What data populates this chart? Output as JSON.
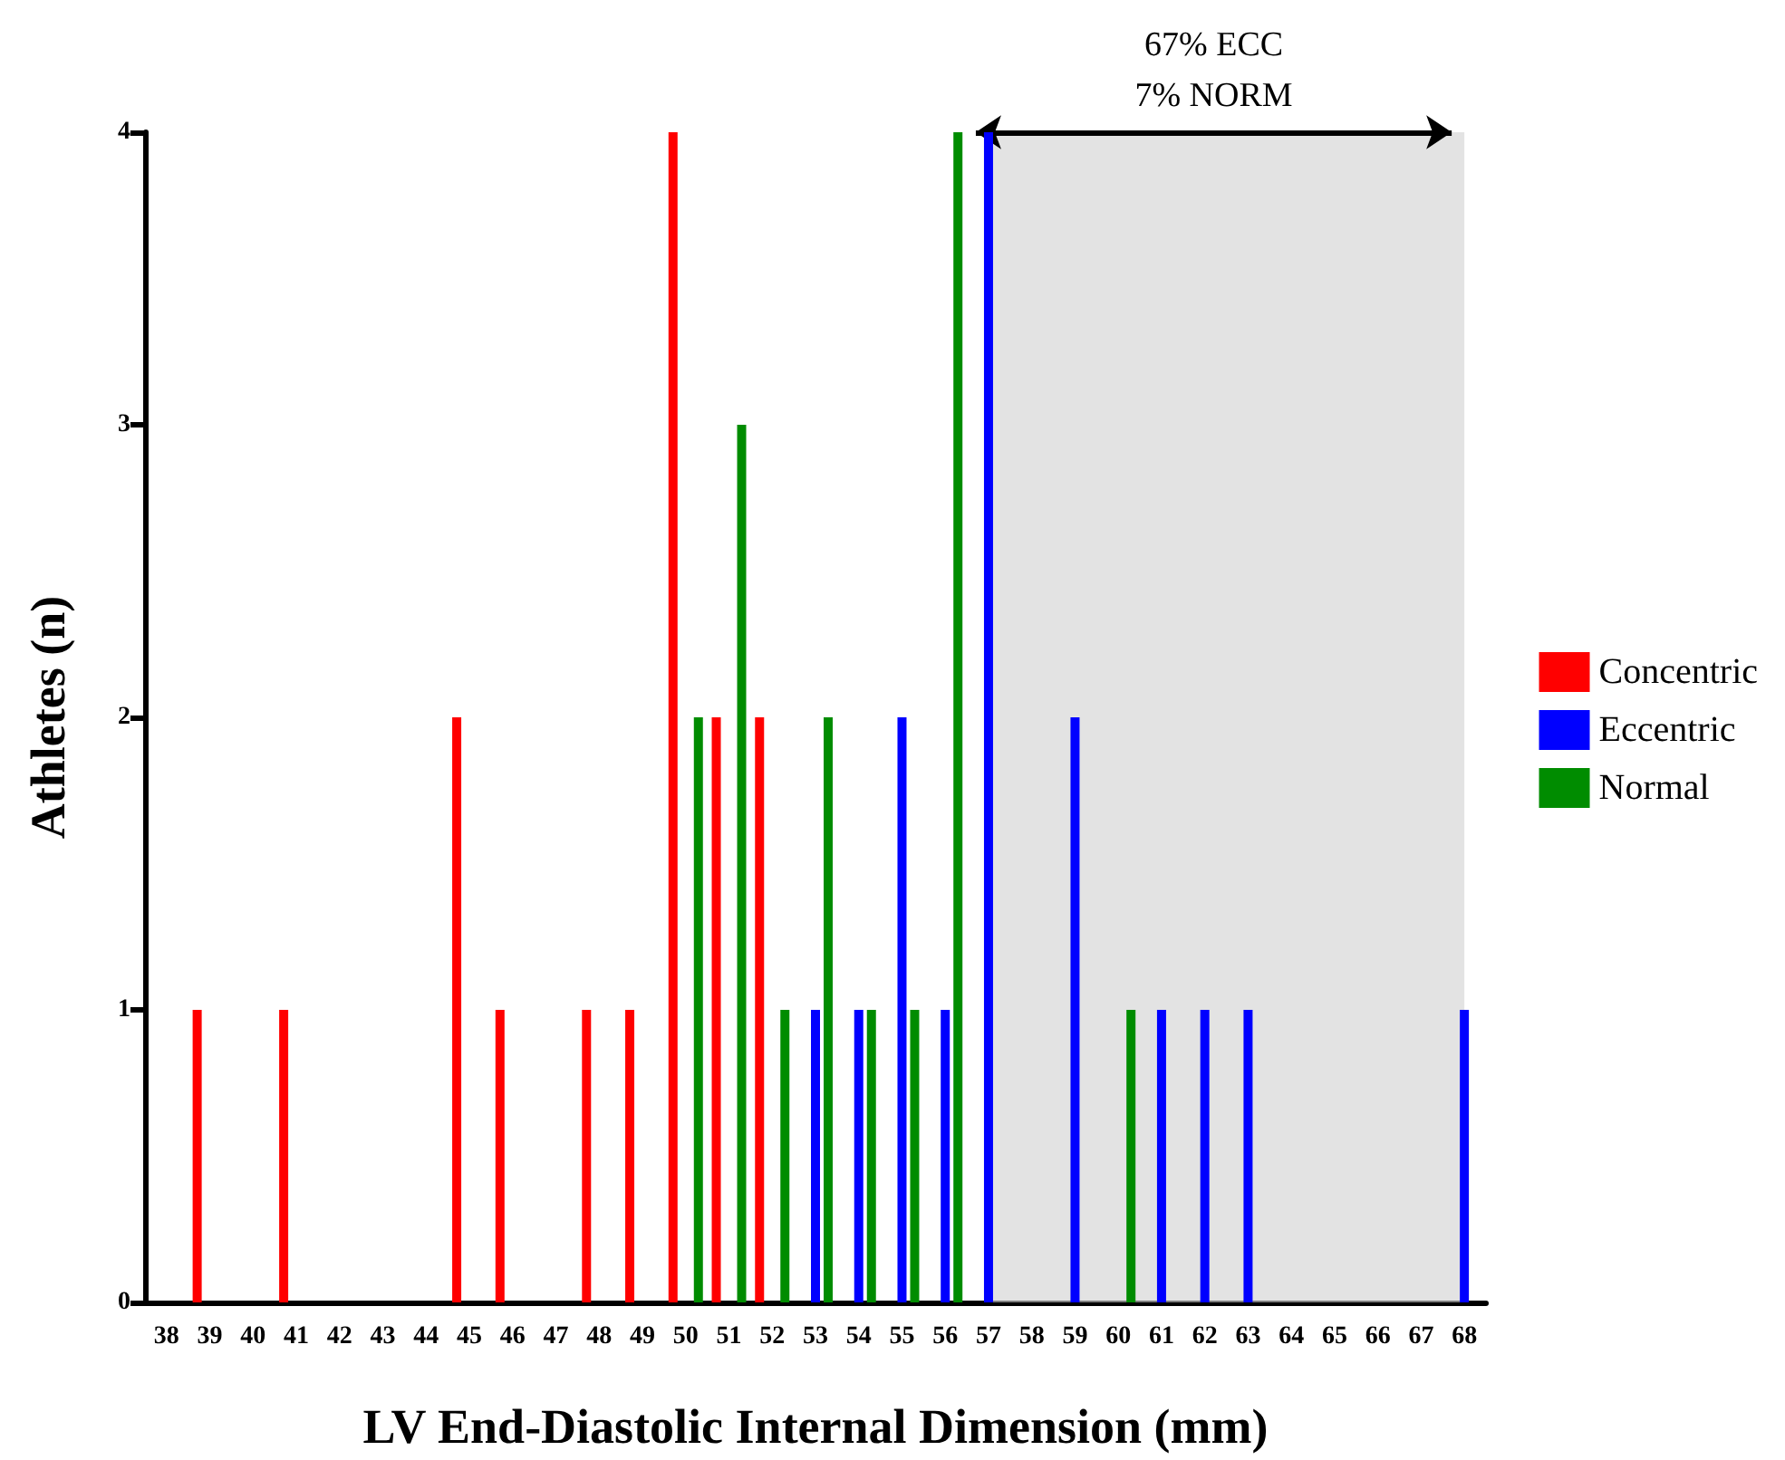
{
  "chart_data": {
    "type": "bar",
    "xlabel": "LV End-Diastolic Internal Dimension (mm)",
    "ylabel": "Athletes (n)",
    "categories": [
      "38",
      "39",
      "40",
      "41",
      "42",
      "43",
      "44",
      "45",
      "46",
      "47",
      "48",
      "49",
      "50",
      "51",
      "52",
      "53",
      "54",
      "55",
      "56",
      "57",
      "58",
      "59",
      "60",
      "61",
      "62",
      "63",
      "64",
      "65",
      "66",
      "67",
      "68"
    ],
    "series": [
      {
        "name": "Concentric",
        "color": "#ff0000",
        "values": [
          0,
          1,
          0,
          1,
          0,
          0,
          0,
          2,
          1,
          0,
          1,
          1,
          4,
          2,
          2,
          0,
          0,
          0,
          0,
          0,
          0,
          0,
          0,
          0,
          0,
          0,
          0,
          0,
          0,
          0,
          0
        ]
      },
      {
        "name": "Eccentric",
        "color": "#0000ff",
        "values": [
          0,
          0,
          0,
          0,
          0,
          0,
          0,
          0,
          0,
          0,
          0,
          0,
          0,
          0,
          0,
          1,
          1,
          2,
          1,
          4,
          0,
          2,
          0,
          1,
          1,
          1,
          0,
          0,
          0,
          0,
          1
        ]
      },
      {
        "name": "Normal",
        "color": "#008c00",
        "values": [
          0,
          0,
          0,
          0,
          0,
          0,
          0,
          0,
          0,
          0,
          0,
          0,
          2,
          3,
          1,
          2,
          1,
          1,
          4,
          0,
          0,
          0,
          1,
          0,
          0,
          0,
          0,
          0,
          0,
          0,
          0
        ]
      }
    ],
    "ylim": [
      0,
      4
    ],
    "yticks": [
      0,
      1,
      2,
      3,
      4
    ],
    "grid": false,
    "legend": "right",
    "bands": [
      {
        "axis": "x",
        "from": "57",
        "to": "68",
        "label": "67% ECC\n7% NORM",
        "color": "#d0d0d0"
      }
    ]
  }
}
